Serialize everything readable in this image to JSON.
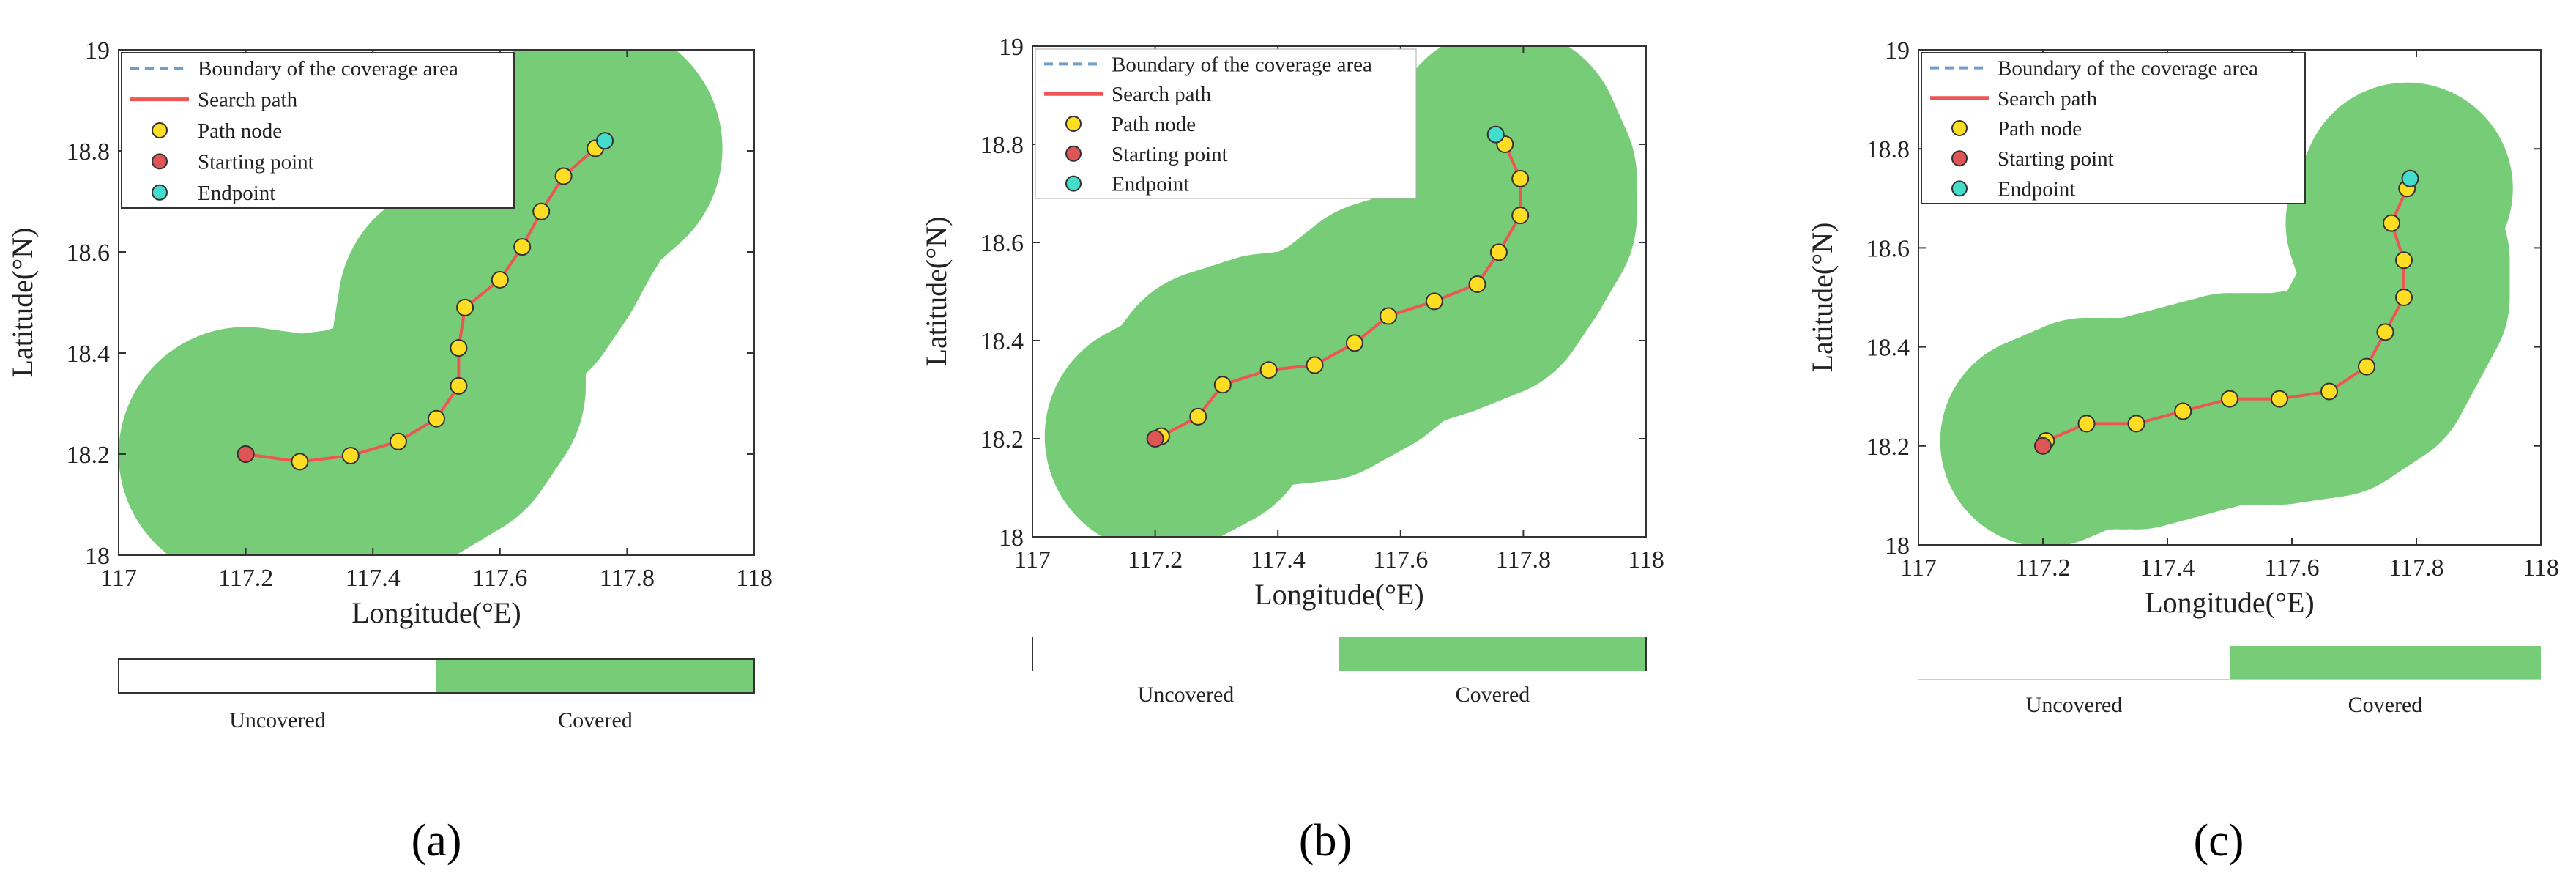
{
  "figure": {
    "colors": {
      "covered": "#77cc77",
      "path": "#ee5555",
      "node": "#ffdd22",
      "start": "#dd5555",
      "end": "#44ddcc",
      "boundary": "#6f9fc8",
      "axis": "#333333"
    }
  },
  "chart_data": [
    {
      "type": "line",
      "panel": "a",
      "caption_open": "(",
      "caption_letter": "a",
      "caption_close": ")",
      "xlabel": "Longitude(°E)",
      "ylabel": "Latitude(°N)",
      "xlim": [
        117,
        118
      ],
      "ylim": [
        18,
        19
      ],
      "xticks": [
        "117",
        "117.2",
        "117.4",
        "117.6",
        "117.8",
        "118"
      ],
      "yticks": [
        "18",
        "18.2",
        "18.4",
        "18.6",
        "18.8",
        "19"
      ],
      "legend": {
        "position": "top-left",
        "entries": [
          "Boundary of the coverage area",
          "Search path",
          " Path node",
          "Starting point",
          "Endpoint"
        ]
      },
      "colorbar": [
        "Uncovered",
        "Covered"
      ],
      "coverage_radius": 0.2,
      "path": [
        [
          117.2,
          18.2
        ],
        [
          117.285,
          18.185
        ],
        [
          117.365,
          18.197
        ],
        [
          117.44,
          18.225
        ],
        [
          117.5,
          18.27
        ],
        [
          117.535,
          18.335
        ],
        [
          117.535,
          18.41
        ],
        [
          117.545,
          18.49
        ],
        [
          117.6,
          18.545
        ],
        [
          117.635,
          18.61
        ],
        [
          117.665,
          18.68
        ],
        [
          117.7,
          18.75
        ],
        [
          117.75,
          18.805
        ]
      ],
      "start": [
        117.2,
        18.2
      ],
      "end": [
        117.765,
        18.82
      ]
    },
    {
      "type": "line",
      "panel": "b",
      "caption_open": "(",
      "caption_letter": "b",
      "caption_close": ")",
      "xlabel": "Longitude(°E)",
      "ylabel": "Latitude(°N)",
      "xlim": [
        117,
        118
      ],
      "ylim": [
        18,
        19
      ],
      "xticks": [
        "117",
        "117.2",
        "117.4",
        "117.6",
        "117.8",
        "118"
      ],
      "yticks": [
        "18",
        "18.2",
        "18.4",
        "18.6",
        "18.8",
        "19"
      ],
      "legend": {
        "position": "top-left",
        "entries": [
          "Boundary of the coverage area",
          "Search path",
          " Path node",
          "Starting point",
          "Endpoint"
        ]
      },
      "colorbar": [
        "Uncovered",
        "Covered"
      ],
      "coverage_radius": 0.19,
      "path": [
        [
          117.21,
          18.205
        ],
        [
          117.27,
          18.245
        ],
        [
          117.31,
          18.31
        ],
        [
          117.385,
          18.34
        ],
        [
          117.46,
          18.35
        ],
        [
          117.525,
          18.395
        ],
        [
          117.58,
          18.45
        ],
        [
          117.655,
          18.48
        ],
        [
          117.725,
          18.515
        ],
        [
          117.76,
          18.58
        ],
        [
          117.795,
          18.655
        ],
        [
          117.795,
          18.73
        ],
        [
          117.77,
          18.8
        ]
      ],
      "start": [
        117.2,
        18.2
      ],
      "end": [
        117.755,
        18.82
      ]
    },
    {
      "type": "line",
      "panel": "c",
      "caption_open": "(",
      "caption_letter": "c",
      "caption_close": ")",
      "xlabel": "Longitude(°E)",
      "ylabel": "Latitude(°N)",
      "xlim": [
        117,
        118
      ],
      "ylim": [
        18,
        19
      ],
      "xticks": [
        "117",
        "117.2",
        "117.4",
        "117.6",
        "117.8",
        "118"
      ],
      "yticks": [
        "18",
        "18.2",
        "18.4",
        "18.6",
        "18.8",
        "19"
      ],
      "legend": {
        "position": "top-left",
        "entries": [
          "Boundary of the coverage area",
          "Search path",
          " Path node",
          "Starting point",
          "Endpoint"
        ]
      },
      "colorbar": [
        "Uncovered",
        "Covered"
      ],
      "coverage_radius": 0.17,
      "path": [
        [
          117.205,
          18.21
        ],
        [
          117.27,
          18.245
        ],
        [
          117.35,
          18.245
        ],
        [
          117.425,
          18.27
        ],
        [
          117.5,
          18.295
        ],
        [
          117.58,
          18.295
        ],
        [
          117.66,
          18.31
        ],
        [
          117.72,
          18.36
        ],
        [
          117.75,
          18.43
        ],
        [
          117.78,
          18.5
        ],
        [
          117.78,
          18.575
        ],
        [
          117.76,
          18.65
        ],
        [
          117.785,
          18.72
        ]
      ],
      "start": [
        117.2,
        18.2
      ],
      "end": [
        117.79,
        18.74
      ]
    }
  ]
}
